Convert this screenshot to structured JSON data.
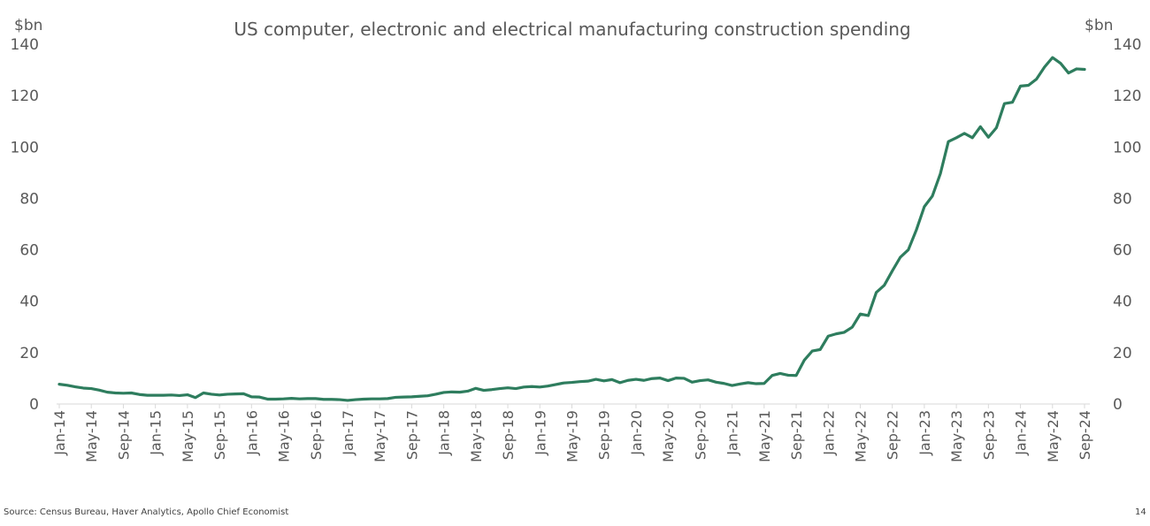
{
  "chart_data": {
    "type": "line",
    "title": "US computer, electronic and electrical manufacturing construction spending",
    "ylabel_left": "$bn",
    "ylabel_right": "$bn",
    "ylim": [
      0,
      140
    ],
    "yticks": [
      0,
      20,
      40,
      60,
      80,
      100,
      120,
      140
    ],
    "grid": false,
    "line_color": "#2E7D5E",
    "x_tick_labels": [
      "Jan-14",
      "May-14",
      "Sep-14",
      "Jan-15",
      "May-15",
      "Sep-15",
      "Jan-16",
      "May-16",
      "Sep-16",
      "Jan-17",
      "May-17",
      "Sep-17",
      "Jan-18",
      "May-18",
      "Sep-18",
      "Jan-19",
      "May-19",
      "Sep-19",
      "Jan-20",
      "May-20",
      "Sep-20",
      "Jan-21",
      "May-21",
      "Sep-21",
      "Jan-22",
      "May-22",
      "Sep-22",
      "Jan-23",
      "May-23",
      "Sep-23",
      "Jan-24",
      "May-24",
      "Sep-24"
    ],
    "x_start": "Jan-14",
    "x_end": "Sep-24",
    "series": [
      {
        "values": [
          7.7,
          7.3,
          6.7,
          6.2,
          6.0,
          5.4,
          4.6,
          4.3,
          4.2,
          4.3,
          3.7,
          3.4,
          3.4,
          3.4,
          3.5,
          3.3,
          3.6,
          2.5,
          4.3,
          3.8,
          3.5,
          3.8,
          3.9,
          4.0,
          2.8,
          2.7,
          1.9,
          1.9,
          2.0,
          2.2,
          2.0,
          2.1,
          2.1,
          1.8,
          1.8,
          1.7,
          1.4,
          1.7,
          1.9,
          2.0,
          2.0,
          2.1,
          2.6,
          2.7,
          2.8,
          3.0,
          3.2,
          3.8,
          4.5,
          4.7,
          4.6,
          5.0,
          6.1,
          5.3,
          5.6,
          6.0,
          6.3,
          6.0,
          6.6,
          6.8,
          6.6,
          7.0,
          7.6,
          8.2,
          8.4,
          8.7,
          8.9,
          9.6,
          9.0,
          9.5,
          8.3,
          9.2,
          9.6,
          9.2,
          9.9,
          10.1,
          9.1,
          10.1,
          10.0,
          8.5,
          9.1,
          9.4,
          8.5,
          8.0,
          7.2,
          7.8,
          8.3,
          7.9,
          8.0,
          11.1,
          11.9,
          11.2,
          11.1,
          17.0,
          20.6,
          21.2,
          26.4,
          27.3,
          27.9,
          29.9,
          35.0,
          34.4,
          43.4,
          46.2,
          51.8,
          57.1,
          60.0,
          67.7,
          76.8,
          80.9,
          89.6,
          102.1,
          103.6,
          105.3,
          103.6,
          107.9,
          103.8,
          107.5,
          116.9,
          117.4,
          123.7,
          124.0,
          126.4,
          131.1,
          134.8,
          132.6,
          128.8,
          130.4,
          130.2
        ]
      }
    ]
  },
  "footer": {
    "source": "Source: Census Bureau, Haver Analytics, Apollo Chief Economist",
    "page_number": "14"
  }
}
